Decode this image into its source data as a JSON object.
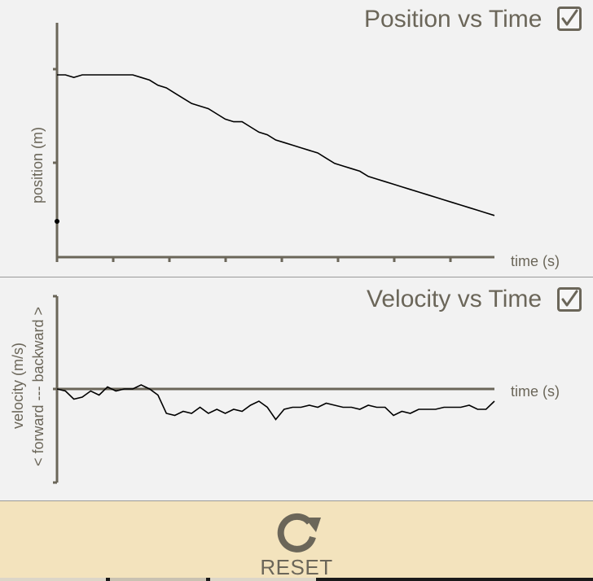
{
  "position_panel": {
    "title": "Position vs Time",
    "checked": true,
    "ylabel": "position (m)",
    "xlabel": "time (s)"
  },
  "velocity_panel": {
    "title": "Velocity vs Time",
    "checked": true,
    "ylabel_line1": "velocity (m/s)",
    "ylabel_line2": "< forward --- backward >",
    "xlabel": "time (s)"
  },
  "reset": {
    "label": "RESET",
    "icon": "refresh-icon"
  },
  "colors": {
    "axis": "#6b6659",
    "line": "#000000",
    "reset_bg": "#f3e3bd",
    "panel_bg": "#f2f2f2"
  },
  "chart_data": [
    {
      "type": "line",
      "title": "Position vs Time",
      "xlabel": "time (s)",
      "ylabel": "position (m)",
      "grid": false,
      "series": [
        {
          "x": [
            0,
            0.15,
            0.3,
            0.45,
            0.6,
            0.75,
            0.9,
            1.05,
            1.2,
            1.35,
            1.5,
            1.65,
            1.8,
            1.95,
            2.1,
            2.25,
            2.4,
            2.55,
            2.7,
            2.85,
            3.0,
            3.15,
            3.3,
            3.45,
            3.6,
            3.75,
            3.9,
            4.05,
            4.2,
            4.35,
            4.5,
            4.65,
            4.8,
            4.95,
            5.1,
            5.25,
            5.4,
            5.55,
            5.7,
            5.85,
            6.0,
            6.15,
            6.3,
            6.45,
            6.6,
            6.75,
            6.9,
            7.05,
            7.2,
            7.35,
            7.5,
            7.65,
            7.8
          ],
          "values": [
            0.7,
            0.7,
            0.69,
            0.7,
            0.7,
            0.7,
            0.7,
            0.7,
            0.7,
            0.7,
            0.69,
            0.68,
            0.66,
            0.65,
            0.63,
            0.61,
            0.59,
            0.58,
            0.57,
            0.55,
            0.53,
            0.52,
            0.52,
            0.5,
            0.48,
            0.47,
            0.45,
            0.44,
            0.43,
            0.42,
            0.41,
            0.4,
            0.38,
            0.36,
            0.35,
            0.34,
            0.33,
            0.31,
            0.3,
            0.29,
            0.28,
            0.27,
            0.26,
            0.25,
            0.24,
            0.23,
            0.22,
            0.21,
            0.2,
            0.19,
            0.18,
            0.17,
            0.16
          ]
        }
      ]
    },
    {
      "type": "line",
      "title": "Velocity vs Time",
      "xlabel": "time (s)",
      "ylabel": "velocity (m/s)",
      "grid": false,
      "series": [
        {
          "x": [
            0,
            0.15,
            0.3,
            0.45,
            0.6,
            0.75,
            0.9,
            1.05,
            1.2,
            1.35,
            1.5,
            1.65,
            1.8,
            1.95,
            2.1,
            2.25,
            2.4,
            2.55,
            2.7,
            2.85,
            3.0,
            3.15,
            3.3,
            3.45,
            3.6,
            3.75,
            3.9,
            4.05,
            4.2,
            4.35,
            4.5,
            4.65,
            4.8,
            4.95,
            5.1,
            5.25,
            5.4,
            5.55,
            5.7,
            5.85,
            6.0,
            6.15,
            6.3,
            6.45,
            6.6,
            6.75,
            6.9,
            7.05,
            7.2,
            7.35,
            7.5,
            7.65,
            7.8
          ],
          "values": [
            0.0,
            -0.01,
            -0.05,
            -0.04,
            -0.01,
            -0.03,
            0.01,
            -0.01,
            0.0,
            0.0,
            0.02,
            0.0,
            -0.03,
            -0.12,
            -0.13,
            -0.11,
            -0.12,
            -0.09,
            -0.12,
            -0.1,
            -0.12,
            -0.1,
            -0.11,
            -0.08,
            -0.06,
            -0.09,
            -0.15,
            -0.1,
            -0.09,
            -0.09,
            -0.08,
            -0.09,
            -0.07,
            -0.08,
            -0.09,
            -0.09,
            -0.1,
            -0.08,
            -0.09,
            -0.09,
            -0.13,
            -0.11,
            -0.12,
            -0.1,
            -0.1,
            -0.1,
            -0.09,
            -0.09,
            -0.09,
            -0.08,
            -0.1,
            -0.1,
            -0.06
          ]
        }
      ]
    }
  ]
}
